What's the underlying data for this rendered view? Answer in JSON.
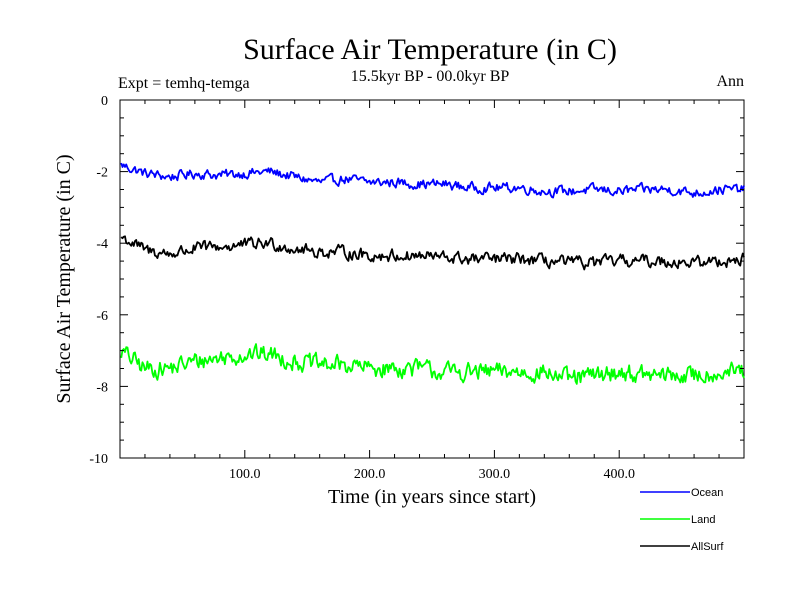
{
  "chart_data": {
    "type": "line",
    "title": "Surface Air Temperature (in C)",
    "subtitle": "15.5kyr BP - 00.0kyr BP",
    "left_annotation": "Expt = temhq-temga",
    "right_annotation": "Ann",
    "xlabel": "Time (in years since start)",
    "ylabel": "Surface Air Temperature (in C)",
    "xlim": [
      0,
      500
    ],
    "ylim": [
      -10,
      0
    ],
    "x_ticks": [
      100,
      200,
      300,
      400
    ],
    "x_tick_labels": [
      "100.0",
      "200.0",
      "300.0",
      "400.0"
    ],
    "y_ticks": [
      0,
      -2,
      -4,
      -6,
      -8,
      -10
    ],
    "y_tick_labels": [
      "0",
      "-2",
      "-4",
      "-6",
      "-8",
      "-10"
    ],
    "legend_position": "bottom-right",
    "series": [
      {
        "name": "Ocean",
        "color": "#0000ff",
        "x": [
          0,
          20,
          40,
          60,
          80,
          100,
          120,
          140,
          160,
          180,
          200,
          220,
          240,
          260,
          280,
          300,
          320,
          340,
          360,
          380,
          400,
          420,
          440,
          460,
          480,
          500
        ],
        "values": [
          -1.8,
          -2.05,
          -2.15,
          -2.05,
          -2.1,
          -2.05,
          -2.0,
          -2.15,
          -2.3,
          -2.2,
          -2.3,
          -2.3,
          -2.35,
          -2.35,
          -2.45,
          -2.45,
          -2.45,
          -2.55,
          -2.55,
          -2.5,
          -2.55,
          -2.5,
          -2.5,
          -2.6,
          -2.5,
          -2.5
        ]
      },
      {
        "name": "Land",
        "color": "#00ff00",
        "x": [
          0,
          20,
          40,
          60,
          80,
          100,
          120,
          140,
          160,
          180,
          200,
          220,
          240,
          260,
          280,
          300,
          320,
          340,
          360,
          380,
          400,
          420,
          440,
          460,
          480,
          500
        ],
        "values": [
          -7.0,
          -7.5,
          -7.5,
          -7.3,
          -7.2,
          -7.1,
          -7.1,
          -7.3,
          -7.4,
          -7.4,
          -7.5,
          -7.5,
          -7.5,
          -7.6,
          -7.6,
          -7.6,
          -7.6,
          -7.6,
          -7.8,
          -7.7,
          -7.6,
          -7.7,
          -7.7,
          -7.7,
          -7.6,
          -7.6
        ]
      },
      {
        "name": "AllSurf",
        "color": "#000000",
        "x": [
          0,
          20,
          40,
          60,
          80,
          100,
          120,
          140,
          160,
          180,
          200,
          220,
          240,
          260,
          280,
          300,
          320,
          340,
          360,
          380,
          400,
          420,
          440,
          460,
          480,
          500
        ],
        "values": [
          -3.8,
          -4.2,
          -4.3,
          -4.15,
          -4.1,
          -4.05,
          -4.0,
          -4.15,
          -4.25,
          -4.25,
          -4.35,
          -4.35,
          -4.35,
          -4.4,
          -4.45,
          -4.45,
          -4.45,
          -4.5,
          -4.55,
          -4.55,
          -4.5,
          -4.5,
          -4.5,
          -4.55,
          -4.5,
          -4.45
        ]
      }
    ]
  }
}
